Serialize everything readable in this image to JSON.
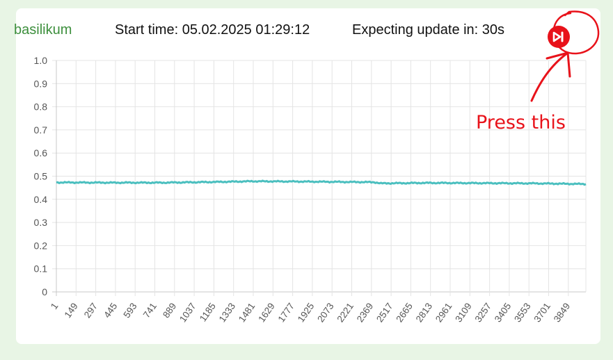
{
  "header": {
    "plant_name": "basilikum",
    "start_time": "Start time: 05.02.2025 01:29:12",
    "expecting_update": "Expecting update in: 30s"
  },
  "skip_button": {
    "icon": "skip-forward-icon",
    "color": "#e8121a"
  },
  "annotation": {
    "text": "Press this",
    "color": "#e8121a"
  },
  "chart_data": {
    "type": "line",
    "y_ticks": [
      "1.0",
      "0.9",
      "0.8",
      "0.7",
      "0.6",
      "0.5",
      "0.4",
      "0.3",
      "0.2",
      "0.1",
      "0"
    ],
    "x_ticks": [
      "1",
      "149",
      "297",
      "445",
      "593",
      "741",
      "889",
      "1037",
      "1185",
      "1333",
      "1481",
      "1629",
      "1777",
      "1925",
      "2073",
      "2221",
      "2369",
      "2517",
      "2665",
      "2813",
      "2961",
      "3109",
      "3257",
      "3405",
      "3553",
      "3701",
      "3849"
    ],
    "ylim": [
      0,
      1
    ],
    "xlim": [
      1,
      3997
    ],
    "grid": true,
    "series": [
      {
        "color": "#4bbfbf",
        "x": [
          1,
          400,
          800,
          1200,
          1481,
          1800,
          2200,
          2400,
          2450,
          2800,
          3200,
          3600,
          3997
        ],
        "y": [
          0.473,
          0.472,
          0.472,
          0.475,
          0.478,
          0.477,
          0.475,
          0.474,
          0.469,
          0.471,
          0.47,
          0.469,
          0.466
        ]
      }
    ]
  }
}
